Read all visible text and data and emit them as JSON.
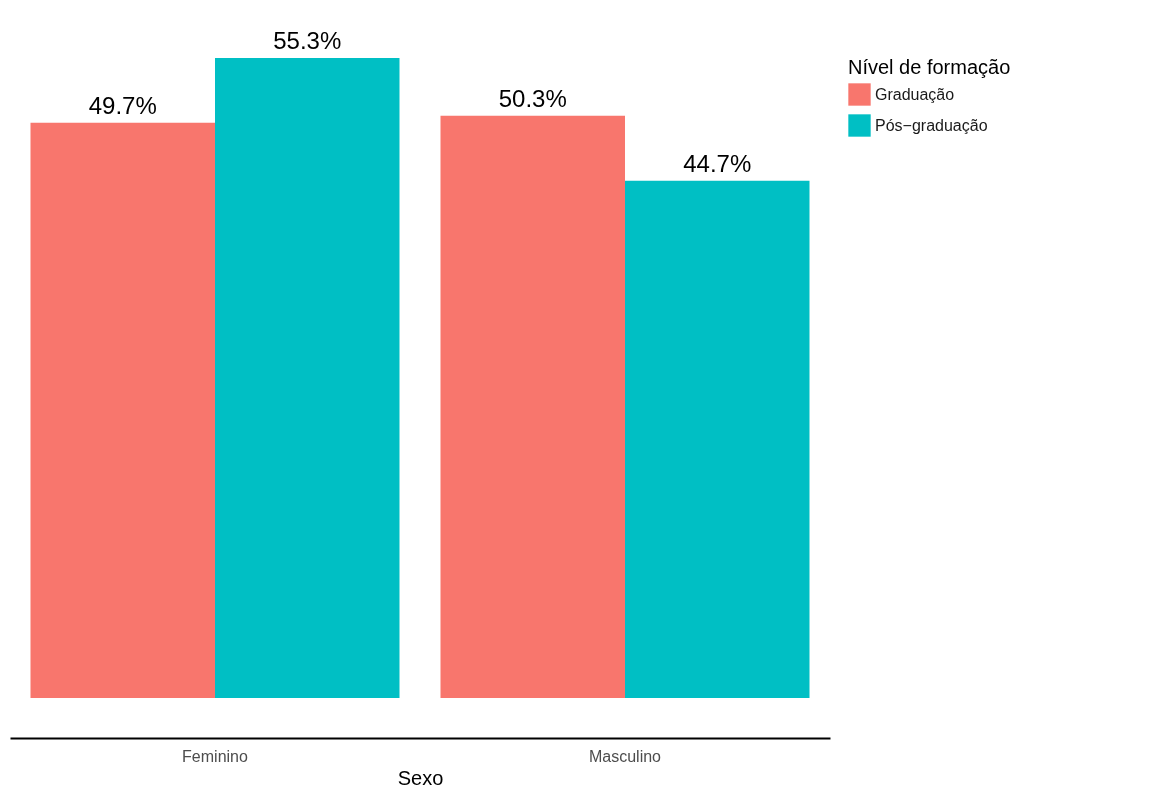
{
  "chart_data": {
    "type": "bar",
    "xlabel": "Sexo",
    "legend_title": "Nível de formação",
    "categories": [
      "Feminino",
      "Masculino"
    ],
    "series": [
      {
        "name": "Graduação",
        "color": "#f8766d",
        "values": [
          49.7,
          50.3
        ],
        "value_labels": [
          "49.7%",
          "50.3%"
        ]
      },
      {
        "name": "Pós−graduação",
        "color": "#00bfc4",
        "values": [
          55.3,
          44.7
        ],
        "value_labels": [
          "55.3%",
          "44.7%"
        ]
      }
    ],
    "legend": "right",
    "grid": false,
    "tick_labels": "x"
  }
}
